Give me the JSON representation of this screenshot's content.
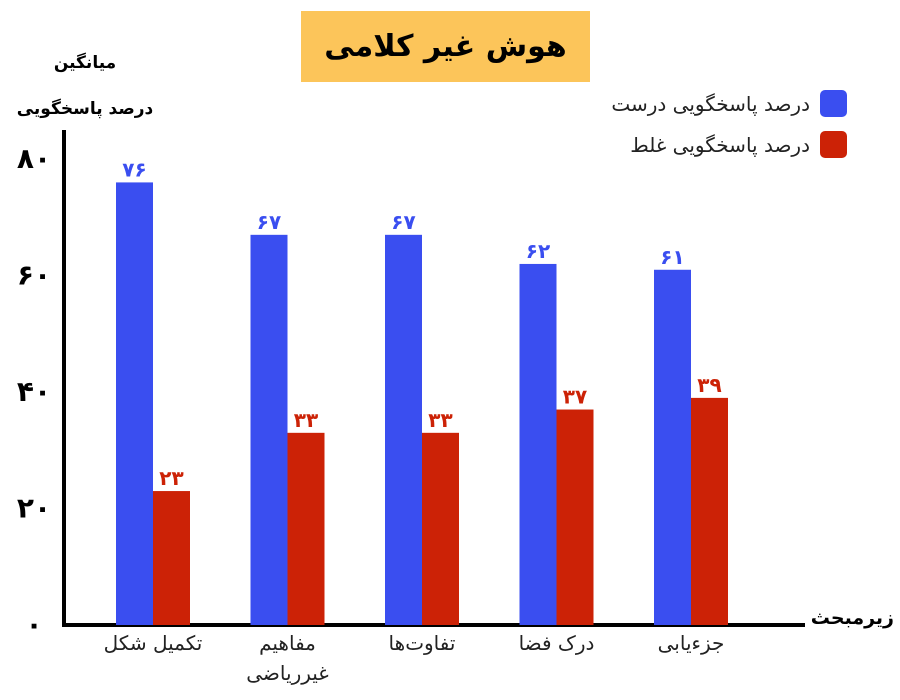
{
  "chart_data": {
    "type": "bar",
    "title": "هوش غیر کلامی",
    "ylabel_line1": "میانگین",
    "ylabel_line2": "درصد پاسخگویی",
    "xlabel": "زیرمبحث",
    "ylim": [
      0,
      85
    ],
    "yticks": [
      0,
      20,
      40,
      60,
      80
    ],
    "ytick_labels": [
      "۰",
      "۲۰",
      "۴۰",
      "۶۰",
      "۸۰"
    ],
    "legend_position": "top-right",
    "categories": [
      "تکمیل شکل",
      "مفاهیم غیرریاضی",
      "تفاوت‌ها",
      "درک فضا",
      "جزءیابی"
    ],
    "category_lines": [
      [
        "تکمیل شکل"
      ],
      [
        "مفاهیم",
        "غیرریاضی"
      ],
      [
        "تفاوت‌ها"
      ],
      [
        "درک فضا"
      ],
      [
        "جزءیابی"
      ]
    ],
    "series": [
      {
        "name": "درصد پاسخگویی درست",
        "color": "#3a4ef0",
        "values": [
          76,
          67,
          67,
          62,
          61
        ],
        "value_labels": [
          "۷۶",
          "۶۷",
          "۶۷",
          "۶۲",
          "۶۱"
        ]
      },
      {
        "name": "درصد پاسخگویی غلط",
        "color": "#cc2206",
        "values": [
          23,
          33,
          33,
          37,
          39
        ],
        "value_labels": [
          "۲۳",
          "۳۳",
          "۳۳",
          "۳۷",
          "۳۹"
        ]
      }
    ]
  }
}
